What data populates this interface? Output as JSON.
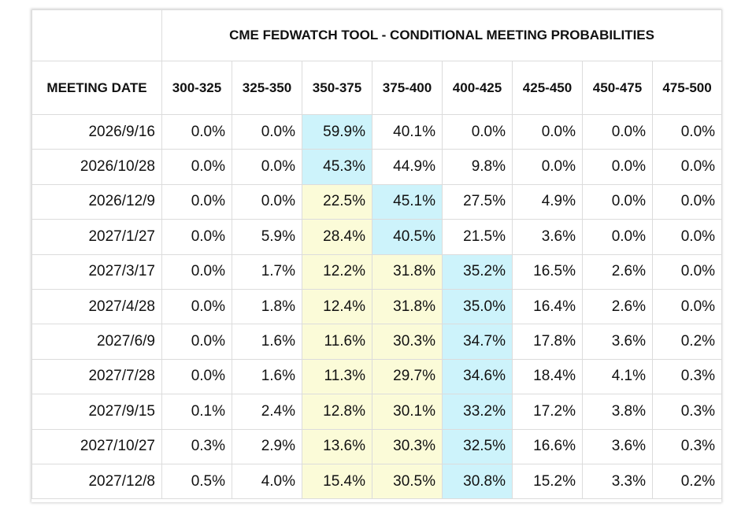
{
  "chart_data": {
    "type": "table",
    "title": "CME FEDWATCH TOOL - CONDITIONAL MEETING PROBABILITIES",
    "row_header_label": "MEETING DATE",
    "columns": [
      "300-325",
      "325-350",
      "350-375",
      "375-400",
      "400-425",
      "425-450",
      "450-475",
      "475-500"
    ],
    "rows": [
      {
        "date": "2026/9/16",
        "values": [
          "0.0%",
          "0.0%",
          "59.9%",
          "40.1%",
          "0.0%",
          "0.0%",
          "0.0%",
          "0.0%"
        ]
      },
      {
        "date": "2026/10/28",
        "values": [
          "0.0%",
          "0.0%",
          "45.3%",
          "44.9%",
          "9.8%",
          "0.0%",
          "0.0%",
          "0.0%"
        ]
      },
      {
        "date": "2026/12/9",
        "values": [
          "0.0%",
          "0.0%",
          "22.5%",
          "45.1%",
          "27.5%",
          "4.9%",
          "0.0%",
          "0.0%"
        ]
      },
      {
        "date": "2027/1/27",
        "values": [
          "0.0%",
          "5.9%",
          "28.4%",
          "40.5%",
          "21.5%",
          "3.6%",
          "0.0%",
          "0.0%"
        ]
      },
      {
        "date": "2027/3/17",
        "values": [
          "0.0%",
          "1.7%",
          "12.2%",
          "31.8%",
          "35.2%",
          "16.5%",
          "2.6%",
          "0.0%"
        ]
      },
      {
        "date": "2027/4/28",
        "values": [
          "0.0%",
          "1.8%",
          "12.4%",
          "31.8%",
          "35.0%",
          "16.4%",
          "2.6%",
          "0.0%"
        ]
      },
      {
        "date": "2027/6/9",
        "values": [
          "0.0%",
          "1.6%",
          "11.6%",
          "30.3%",
          "34.7%",
          "17.8%",
          "3.6%",
          "0.2%"
        ]
      },
      {
        "date": "2027/7/28",
        "values": [
          "0.0%",
          "1.6%",
          "11.3%",
          "29.7%",
          "34.6%",
          "18.4%",
          "4.1%",
          "0.3%"
        ]
      },
      {
        "date": "2027/9/15",
        "values": [
          "0.1%",
          "2.4%",
          "12.8%",
          "30.1%",
          "33.2%",
          "17.2%",
          "3.8%",
          "0.3%"
        ]
      },
      {
        "date": "2027/10/27",
        "values": [
          "0.3%",
          "2.9%",
          "13.6%",
          "30.3%",
          "32.5%",
          "16.6%",
          "3.6%",
          "0.3%"
        ]
      },
      {
        "date": "2027/12/8",
        "values": [
          "0.5%",
          "4.0%",
          "15.4%",
          "30.5%",
          "30.8%",
          "15.2%",
          "3.3%",
          "0.2%"
        ]
      }
    ],
    "highlight_colors": {
      "max_probability": "#cdf3fb",
      "below_max_range": "#fbfbd8"
    },
    "highlights": [
      {
        "row": 0,
        "max_col": 2,
        "yellow_cols": []
      },
      {
        "row": 1,
        "max_col": 2,
        "yellow_cols": []
      },
      {
        "row": 2,
        "max_col": 3,
        "yellow_cols": [
          2
        ]
      },
      {
        "row": 3,
        "max_col": 3,
        "yellow_cols": [
          2
        ]
      },
      {
        "row": 4,
        "max_col": 4,
        "yellow_cols": [
          2,
          3
        ]
      },
      {
        "row": 5,
        "max_col": 4,
        "yellow_cols": [
          2,
          3
        ]
      },
      {
        "row": 6,
        "max_col": 4,
        "yellow_cols": [
          2,
          3
        ]
      },
      {
        "row": 7,
        "max_col": 4,
        "yellow_cols": [
          2,
          3
        ]
      },
      {
        "row": 8,
        "max_col": 4,
        "yellow_cols": [
          2,
          3
        ]
      },
      {
        "row": 9,
        "max_col": 4,
        "yellow_cols": [
          2,
          3
        ]
      },
      {
        "row": 10,
        "max_col": 4,
        "yellow_cols": [
          2,
          3
        ]
      }
    ]
  }
}
